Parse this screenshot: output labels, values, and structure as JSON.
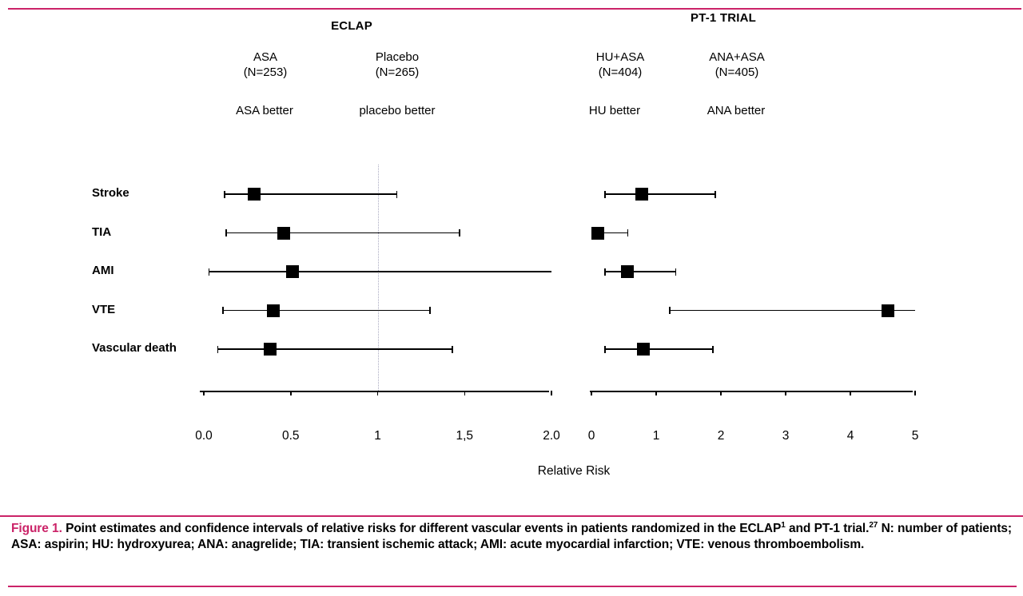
{
  "colors": {
    "accent": "#cb2368",
    "marker": "#000000"
  },
  "xlabel": "Relative Risk",
  "rows": [
    "Stroke",
    "TIA",
    "AMI",
    "VTE",
    "Vascular death"
  ],
  "chart_data": [
    {
      "type": "forest",
      "title": "ECLAP",
      "arms": [
        {
          "name": "ASA",
          "n": "(N=253)",
          "better": "ASA better"
        },
        {
          "name": "Placebo",
          "n": "(N=265)",
          "better": "placebo better"
        }
      ],
      "xlim": [
        0,
        2
      ],
      "reference_line": 1,
      "xticks": [
        {
          "v": 0,
          "label": "0.0"
        },
        {
          "v": 0.5,
          "label": "0.5"
        },
        {
          "v": 1,
          "label": "1"
        },
        {
          "v": 1.5,
          "label": "1,5"
        },
        {
          "v": 2,
          "label": "2.0"
        }
      ],
      "categories": [
        "Stroke",
        "TIA",
        "AMI",
        "VTE",
        "Vascular death"
      ],
      "series": [
        {
          "category": "Stroke",
          "point": 0.29,
          "ci": [
            0.12,
            1.11
          ]
        },
        {
          "category": "TIA",
          "point": 0.46,
          "ci": [
            0.13,
            1.47
          ]
        },
        {
          "category": "AMI",
          "point": 0.51,
          "ci": [
            0.03,
            2.0
          ]
        },
        {
          "category": "VTE",
          "point": 0.4,
          "ci": [
            0.11,
            1.3
          ]
        },
        {
          "category": "Vascular death",
          "point": 0.38,
          "ci": [
            0.08,
            1.43
          ]
        }
      ],
      "xlabel": "Relative Risk"
    },
    {
      "type": "forest",
      "title": "PT-1 TRIAL",
      "arms": [
        {
          "name": "HU+ASA",
          "n": "(N=404)",
          "better": "HU better"
        },
        {
          "name": "ANA+ASA",
          "n": "(N=405)",
          "better": "ANA better"
        }
      ],
      "xlim": [
        0,
        5
      ],
      "xticks": [
        {
          "v": 0,
          "label": "0"
        },
        {
          "v": 1,
          "label": "1"
        },
        {
          "v": 2,
          "label": "2"
        },
        {
          "v": 3,
          "label": "3"
        },
        {
          "v": 4,
          "label": "4"
        },
        {
          "v": 5,
          "label": "5"
        }
      ],
      "categories": [
        "Stroke",
        "TIA",
        "AMI",
        "VTE",
        "Vascular death"
      ],
      "series": [
        {
          "category": "Stroke",
          "point": 0.78,
          "ci": [
            0.21,
            1.91
          ]
        },
        {
          "category": "TIA",
          "point": 0.1,
          "ci": [
            0.01,
            0.56
          ]
        },
        {
          "category": "AMI",
          "point": 0.55,
          "ci": [
            0.21,
            1.3
          ]
        },
        {
          "category": "VTE",
          "point": 4.58,
          "ci": [
            1.21,
            5.0
          ]
        },
        {
          "category": "Vascular death",
          "point": 0.8,
          "ci": [
            0.21,
            1.88
          ]
        }
      ],
      "xlabel": "Relative Risk"
    }
  ],
  "caption": {
    "label": "Figure 1.",
    "part1": "Point estimates and confidence intervals of relative risks for different vascular events in patients randomized in the ECLAP",
    "sup1": "1",
    "part2": "and PT-1 trial.",
    "sup2": "27",
    "part3": "N: number of patients; ASA: aspirin; HU: hydroxyurea; ANA: anagrelide; TIA: transient ischemic attack; AMI: acute myocardial infarction; VTE: venous thromboembolism."
  }
}
